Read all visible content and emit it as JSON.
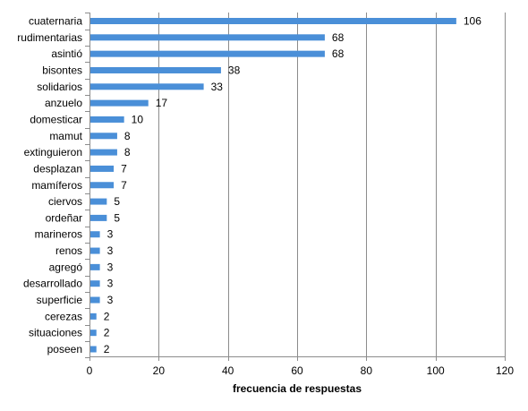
{
  "chart_data": {
    "type": "bar",
    "orientation": "horizontal",
    "categories": [
      "cuaternaria",
      "rudimentarias",
      "asintió",
      "bisontes",
      "solidarios",
      "anzuelo",
      "domesticar",
      "mamut",
      "extinguieron",
      "desplazan",
      "mamíferos",
      "ciervos",
      "ordeñar",
      "marineros",
      "renos",
      "agregó",
      "desarrollado",
      "superficie",
      "cerezas",
      "situaciones",
      "poseen"
    ],
    "values": [
      106,
      68,
      68,
      38,
      33,
      17,
      10,
      8,
      8,
      7,
      7,
      5,
      5,
      3,
      3,
      3,
      3,
      3,
      2,
      2,
      2
    ],
    "xlabel": "frecuencia de respuestas",
    "xlim": [
      0,
      120
    ],
    "xticks": [
      0,
      20,
      40,
      60,
      80,
      100,
      120
    ],
    "grid": "vertical",
    "bar_color": "#4A8FD8",
    "data_labels": true
  }
}
